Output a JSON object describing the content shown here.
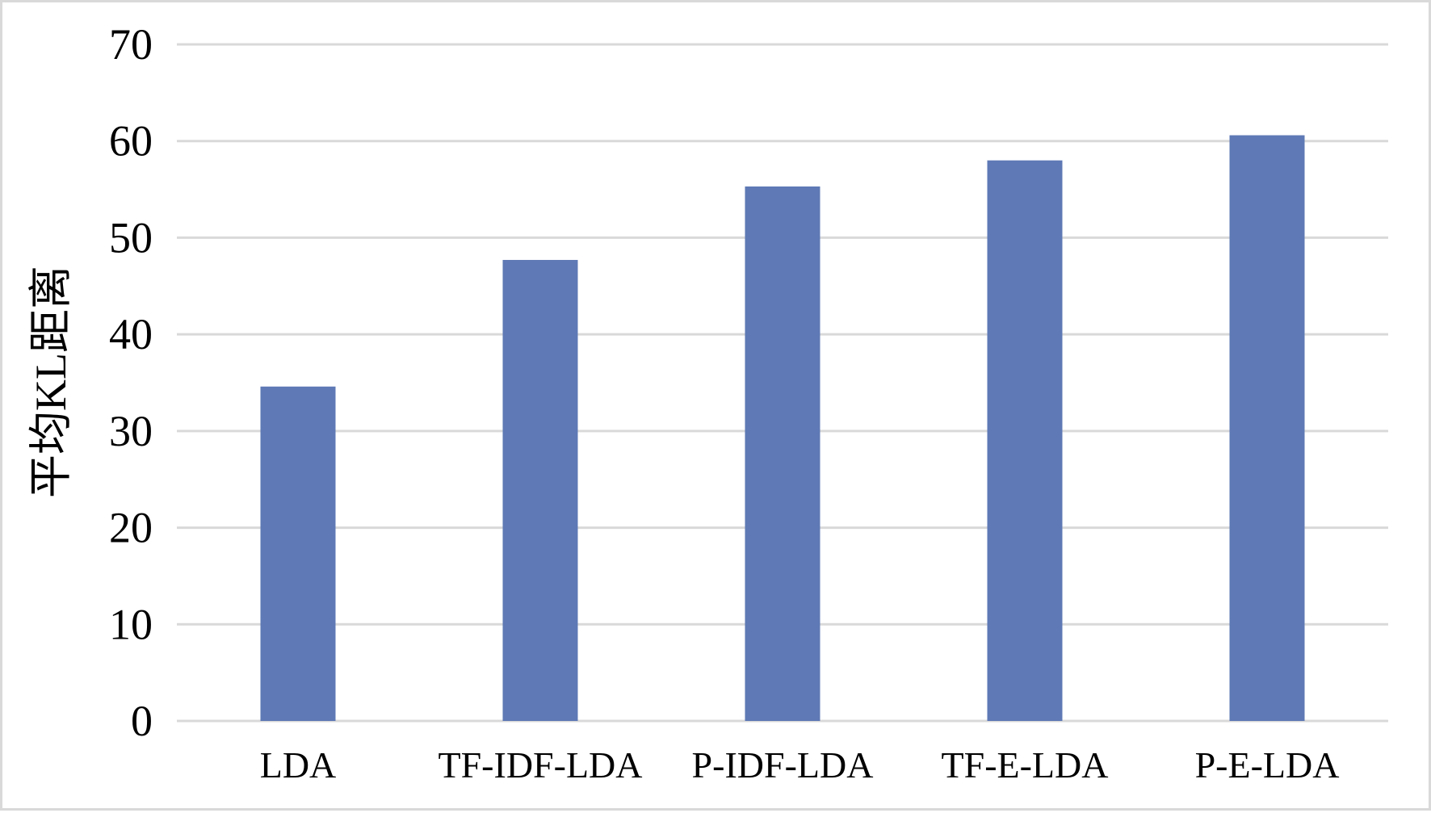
{
  "colors": {
    "bar": "#5e79b5",
    "grid": "#d9d9d9",
    "frame": "#d9d9d9",
    "text": "#000000"
  },
  "chart_data": {
    "type": "bar",
    "categories": [
      "LDA",
      "TF-IDF-LDA",
      "P-IDF-LDA",
      "TF-E-LDA",
      "P-E-LDA"
    ],
    "values": [
      34.6,
      47.7,
      55.3,
      58.0,
      60.6
    ],
    "ylabel": "平均KL距离",
    "xlabel": "",
    "ylim": [
      0,
      70
    ],
    "yticks": [
      0,
      10,
      20,
      30,
      40,
      50,
      60,
      70
    ],
    "grid": true,
    "legend": "none"
  }
}
